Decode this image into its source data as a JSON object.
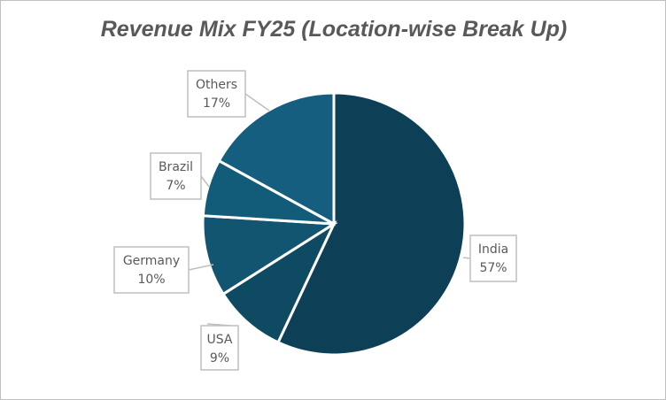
{
  "chart_data": {
    "type": "pie",
    "title": "Revenue Mix FY25 (Location-wise Break Up)",
    "categories": [
      "India",
      "USA",
      "Germany",
      "Brazil",
      "Others"
    ],
    "values": [
      57,
      9,
      10,
      7,
      17
    ],
    "unit": "%",
    "colors": [
      "#0D3F56",
      "#0F4A63",
      "#125570",
      "#135C79",
      "#155E80"
    ],
    "labels": [
      {
        "name": "India",
        "pct": "57%"
      },
      {
        "name": "USA",
        "pct": "9%"
      },
      {
        "name": "Germany",
        "pct": "10%"
      },
      {
        "name": "Brazil",
        "pct": "7%"
      },
      {
        "name": "Others",
        "pct": "17%"
      }
    ],
    "legend": "none",
    "data_labels": "callouts"
  }
}
